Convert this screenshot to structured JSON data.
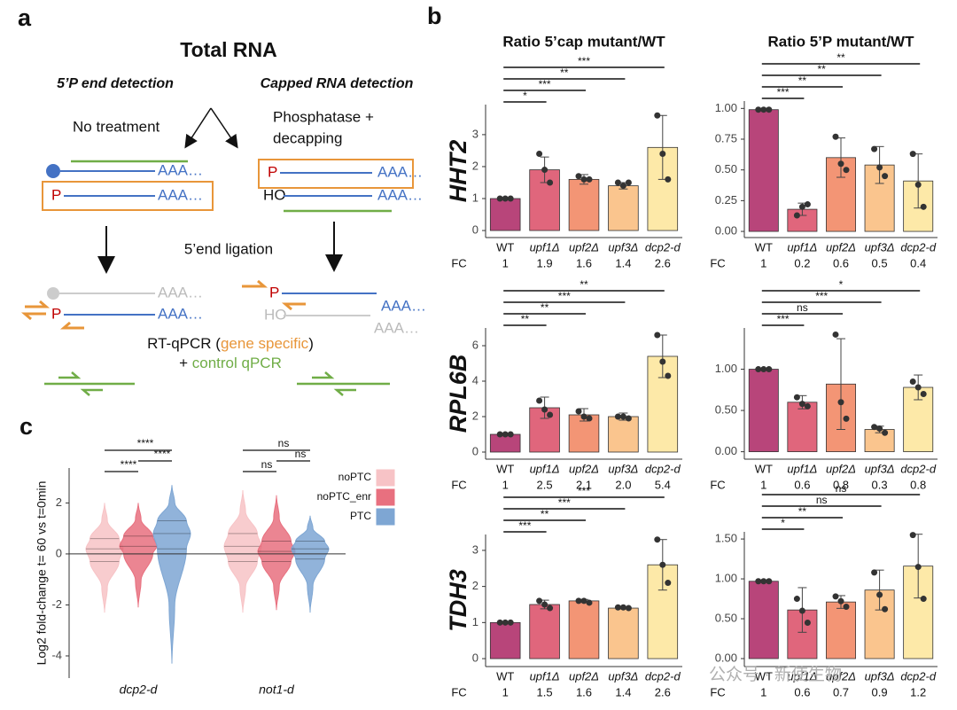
{
  "panel_labels": [
    "a",
    "b",
    "c"
  ],
  "watermark": "公众号 · 新使生物",
  "diagram": {
    "title": "Total RNA",
    "left_heading": "5’P end detection",
    "right_heading": "Capped RNA detection",
    "left_treatment": "No treatment",
    "right_treatment": [
      "Phosphatase +",
      "decapping"
    ],
    "ligation": "5’end ligation",
    "polya": "AAA…",
    "phosphate": "P",
    "hydroxyl": "HO",
    "rtqpcr": {
      "prefix": "RT-qPCR (",
      "highlight": "gene specific",
      "suffix": ")"
    },
    "control": {
      "prefix": "+ ",
      "highlight": "control qPCR"
    }
  },
  "panel_b": {
    "column_titles": [
      "Ratio 5’cap mutant/WT",
      "Ratio 5’P mutant/WT"
    ],
    "row_labels": [
      "HHT2",
      "RPL6B",
      "TDH3"
    ],
    "fc_label": "FC"
  },
  "chart_data": [
    {
      "type": "bar",
      "categories": [
        "WT",
        "upf1Δ",
        "upf2Δ",
        "upf3Δ",
        "dcp2-d"
      ],
      "values": [
        1,
        1.9,
        1.6,
        1.4,
        2.6
      ],
      "value_labels": [
        "1",
        "1.9",
        "1.6",
        "1.4",
        "2.6"
      ],
      "error": [
        0,
        0.4,
        0.15,
        0.1,
        1.0
      ],
      "points": [
        [
          1,
          1,
          1
        ],
        [
          2.4,
          1.9,
          1.5
        ],
        [
          1.7,
          1.6,
          1.6
        ],
        [
          1.5,
          1.4,
          1.5
        ],
        [
          3.6,
          2.4,
          1.6
        ]
      ],
      "significance": [
        null,
        "*",
        "***",
        "**",
        "***"
      ],
      "colors": [
        "#b8457a",
        "#e0667c",
        "#f39575",
        "#fac58e",
        "#fde9a8"
      ],
      "ylim": [
        -0.22,
        3.94
      ],
      "yticks": [
        0,
        1,
        2,
        3
      ]
    },
    {
      "type": "bar",
      "categories": [
        "WT",
        "upf1Δ",
        "upf2Δ",
        "upf3Δ",
        "dcp2-d"
      ],
      "values": [
        0.99,
        0.18,
        0.6,
        0.54,
        0.41
      ],
      "value_labels": [
        "1",
        "0.2",
        "0.6",
        "0.5",
        "0.4"
      ],
      "error": [
        0.01,
        0.05,
        0.16,
        0.15,
        0.22
      ],
      "points": [
        [
          0.99,
          0.99,
          0.99
        ],
        [
          0.13,
          0.2,
          0.22
        ],
        [
          0.77,
          0.55,
          0.5
        ],
        [
          0.67,
          0.52,
          0.45
        ],
        [
          0.63,
          0.38,
          0.2
        ]
      ],
      "significance": [
        null,
        "***",
        "**",
        "**",
        "**"
      ],
      "colors": [
        "#b8457a",
        "#e0667c",
        "#f39575",
        "#fac58e",
        "#fde9a8"
      ],
      "ylim": [
        -0.05,
        1.06
      ],
      "yticks": [
        {
          "value": 0,
          "label": "0.00"
        },
        {
          "value": 0.25,
          "label": "0.25"
        },
        {
          "value": 0.5,
          "label": "0.50"
        },
        {
          "value": 0.75,
          "label": "0.75"
        },
        {
          "value": 1,
          "label": "1.00"
        }
      ]
    },
    {
      "type": "bar",
      "categories": [
        "WT",
        "upf1Δ",
        "upf2Δ",
        "upf3Δ",
        "dcp2-d"
      ],
      "values": [
        1,
        2.5,
        2.1,
        2.0,
        5.4
      ],
      "value_labels": [
        "1",
        "2.5",
        "2.1",
        "2.0",
        "5.4"
      ],
      "error": [
        0,
        0.6,
        0.35,
        0.2,
        1.2
      ],
      "points": [
        [
          1,
          1,
          1
        ],
        [
          2.9,
          2.4,
          2.1
        ],
        [
          2.3,
          2.0,
          1.9
        ],
        [
          2.0,
          2.0,
          1.9
        ],
        [
          6.6,
          5.1,
          4.3
        ]
      ],
      "significance": [
        null,
        "**",
        "**",
        "***",
        "**"
      ],
      "colors": [
        "#b8457a",
        "#e0667c",
        "#f39575",
        "#fac58e",
        "#fde9a8"
      ],
      "ylim": [
        -0.4,
        7
      ],
      "yticks": [
        0,
        2,
        4,
        6
      ]
    },
    {
      "type": "bar",
      "categories": [
        "WT",
        "upf1Δ",
        "upf2Δ",
        "upf3Δ",
        "dcp2-d"
      ],
      "values": [
        1,
        0.6,
        0.82,
        0.27,
        0.78
      ],
      "value_labels": [
        "1",
        "0.6",
        "0.8",
        "0.3",
        "0.8"
      ],
      "error": [
        0,
        0.08,
        0.55,
        0.04,
        0.15
      ],
      "points": [
        [
          1,
          1,
          1
        ],
        [
          0.66,
          0.58,
          0.55
        ],
        [
          1.42,
          0.6,
          0.4
        ],
        [
          0.3,
          0.28,
          0.23
        ],
        [
          0.85,
          0.78,
          0.7
        ]
      ],
      "significance": [
        null,
        "***",
        "ns",
        "***",
        "*"
      ],
      "colors": [
        "#b8457a",
        "#e0667c",
        "#f39575",
        "#fac58e",
        "#fde9a8"
      ],
      "ylim": [
        -0.09,
        1.5
      ],
      "yticks": [
        {
          "value": 0,
          "label": "0.00"
        },
        {
          "value": 0.5,
          "label": "0.50"
        },
        {
          "value": 1,
          "label": "1.00"
        }
      ]
    },
    {
      "type": "bar",
      "categories": [
        "WT",
        "upf1Δ",
        "upf2Δ",
        "upf3Δ",
        "dcp2-d"
      ],
      "values": [
        1,
        1.5,
        1.6,
        1.4,
        2.6
      ],
      "value_labels": [
        "1",
        "1.5",
        "1.6",
        "1.4",
        "2.6"
      ],
      "error": [
        0,
        0.12,
        0.04,
        0.02,
        0.7
      ],
      "points": [
        [
          1,
          1,
          1
        ],
        [
          1.6,
          1.5,
          1.4
        ],
        [
          1.6,
          1.6,
          1.55
        ],
        [
          1.42,
          1.42,
          1.4
        ],
        [
          3.3,
          2.6,
          2.1
        ]
      ],
      "significance": [
        null,
        "***",
        "**",
        "***",
        "***"
      ],
      "colors": [
        "#b8457a",
        "#e0667c",
        "#f39575",
        "#fac58e",
        "#fde9a8"
      ],
      "ylim": [
        -0.22,
        3.44
      ],
      "yticks": [
        0,
        1,
        2,
        3
      ]
    },
    {
      "type": "bar",
      "categories": [
        "WT",
        "upf1Δ",
        "upf2Δ",
        "upf3Δ",
        "dcp2-d"
      ],
      "values": [
        0.97,
        0.61,
        0.71,
        0.86,
        1.16
      ],
      "value_labels": [
        "1",
        "0.6",
        "0.7",
        "0.9",
        "1.2"
      ],
      "error": [
        0.01,
        0.28,
        0.08,
        0.25,
        0.4
      ],
      "points": [
        [
          0.97,
          0.97,
          0.97
        ],
        [
          0.75,
          0.6,
          0.45
        ],
        [
          0.78,
          0.72,
          0.65
        ],
        [
          1.08,
          0.8,
          0.62
        ],
        [
          1.55,
          1.15,
          0.75
        ]
      ],
      "significance": [
        null,
        "*",
        "**",
        "ns",
        "ns"
      ],
      "colors": [
        "#b8457a",
        "#e0667c",
        "#f39575",
        "#fac58e",
        "#fde9a8"
      ],
      "ylim": [
        -0.1,
        1.59
      ],
      "yticks": [
        {
          "value": 0,
          "label": "0.00"
        },
        {
          "value": 0.5,
          "label": "0.50"
        },
        {
          "value": 1,
          "label": "1.00"
        },
        {
          "value": 1.5,
          "label": "1.50"
        }
      ]
    },
    {
      "type": "violin",
      "ylabel": "Log2 fold-change t= 60 vs t=0min",
      "categories": [
        "dcp2-d",
        "not1-d"
      ],
      "series": [
        {
          "name": "noPTC",
          "color": "#f7c3c6",
          "values": [
            0.2,
            0.3
          ],
          "q1": [
            -0.3,
            -0.3
          ],
          "q3": [
            0.6,
            0.8
          ],
          "min": [
            -2.3,
            -2.3
          ],
          "max": [
            2.0,
            2.5
          ]
        },
        {
          "name": "noPTC_enr",
          "color": "#e8707f",
          "values": [
            0.3,
            0.1
          ],
          "q1": [
            0,
            -0.3
          ],
          "q3": [
            0.7,
            0.5
          ],
          "min": [
            -2.1,
            -2.2
          ],
          "max": [
            2.0,
            2.3
          ]
        },
        {
          "name": "PTC",
          "color": "#7ea6d3",
          "values": [
            0.8,
            0.2
          ],
          "q1": [
            0.2,
            -0.2
          ],
          "q3": [
            1.3,
            0.5
          ],
          "min": [
            -4.3,
            -2.3
          ],
          "max": [
            2.7,
            1.5
          ]
        }
      ],
      "significance": [
        [
          "****",
          "****",
          "****"
        ],
        [
          "ns",
          "ns",
          "ns"
        ]
      ],
      "ylim": [
        -4.87,
        3.37
      ],
      "yticks": [
        -4,
        -2,
        0,
        2
      ],
      "legend": "right"
    }
  ]
}
